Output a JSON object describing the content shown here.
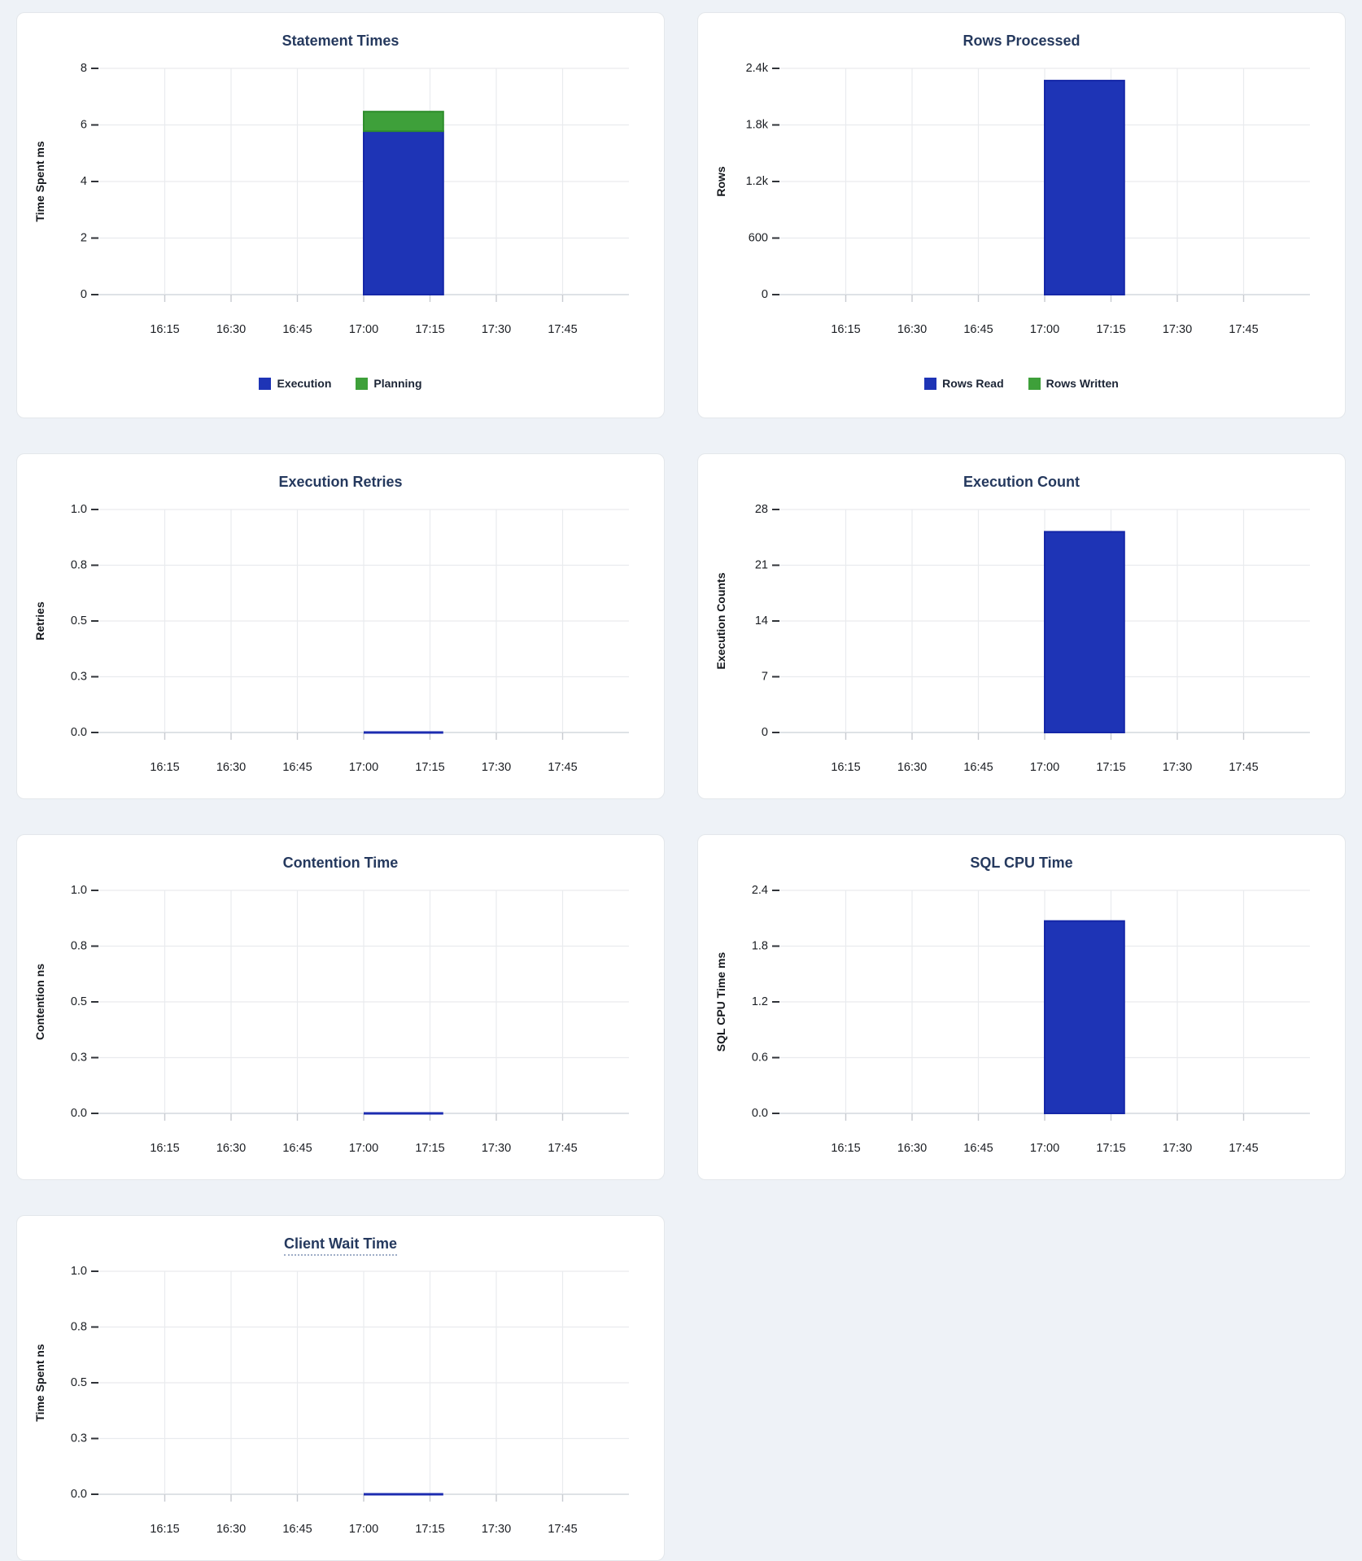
{
  "palette": {
    "page_background": "#eef2f7",
    "card_background": "#ffffff",
    "card_border": "#e3e7eb",
    "title_text": "#25395e",
    "axis_text": "#1b1e23",
    "grid_line": "#e9ebee",
    "zero_line": "#d4d8dd",
    "tick_dash": "#303338",
    "x_tick_stub": "#c7cbd0",
    "bar_blue": "#1e34b6",
    "bar_blue_border": "#1527a8",
    "bar_green": "#3ea03a",
    "bar_green_border": "#2e8d2c",
    "flat_line_blue": "#1c2cb0",
    "title_underline_dots": "#9fadc7"
  },
  "x_axis": {
    "range_start": "16:00",
    "range_end": "18:00",
    "ticks": [
      "16:15",
      "16:30",
      "16:45",
      "17:00",
      "17:15",
      "17:30",
      "17:45"
    ],
    "data_window_start": "17:00",
    "data_window_end": "17:18"
  },
  "chart_data": [
    {
      "type": "bar",
      "stacked": true,
      "title": "Statement Times",
      "ylabel": "Time Spent ms",
      "ymax": 8,
      "yticks": [
        {
          "label": "0",
          "value": 0
        },
        {
          "label": "2",
          "value": 2
        },
        {
          "label": "4",
          "value": 4
        },
        {
          "label": "6",
          "value": 6
        },
        {
          "label": "8",
          "value": 8
        }
      ],
      "series": [
        {
          "name": "Execution",
          "color": "bar_blue",
          "border": "bar_blue_border",
          "value": 5.78
        },
        {
          "name": "Planning",
          "color": "bar_green",
          "border": "bar_green_border",
          "value": 0.69
        }
      ],
      "legend": [
        {
          "label": "Execution",
          "color": "bar_blue"
        },
        {
          "label": "Planning",
          "color": "bar_green"
        }
      ]
    },
    {
      "type": "bar",
      "stacked": true,
      "title": "Rows Processed",
      "ylabel": "Rows",
      "ymax": 2400,
      "yticks": [
        {
          "label": "0",
          "value": 0
        },
        {
          "label": "600",
          "value": 600
        },
        {
          "label": "1.2k",
          "value": 1200
        },
        {
          "label": "1.8k",
          "value": 1800
        },
        {
          "label": "2.4k",
          "value": 2400
        }
      ],
      "series": [
        {
          "name": "Rows Read",
          "color": "bar_blue",
          "border": "bar_blue_border",
          "value": 2270
        },
        {
          "name": "Rows Written",
          "color": "bar_green",
          "border": "bar_green_border",
          "value": 0
        }
      ],
      "legend": [
        {
          "label": "Rows Read",
          "color": "bar_blue"
        },
        {
          "label": "Rows Written",
          "color": "bar_green"
        }
      ]
    },
    {
      "type": "line",
      "title": "Execution Retries",
      "ylabel": "Retries",
      "ymax": 1,
      "yticks": [
        {
          "label": "0.0",
          "value": 0
        },
        {
          "label": "0.3",
          "value": 0.25
        },
        {
          "label": "0.5",
          "value": 0.5
        },
        {
          "label": "0.8",
          "value": 0.75
        },
        {
          "label": "1.0",
          "value": 1
        }
      ],
      "line_value": 0
    },
    {
      "type": "bar",
      "stacked": false,
      "title": "Execution Count",
      "ylabel": "Execution Counts",
      "ymax": 28,
      "yticks": [
        {
          "label": "0",
          "value": 0
        },
        {
          "label": "7",
          "value": 7
        },
        {
          "label": "14",
          "value": 14
        },
        {
          "label": "21",
          "value": 21
        },
        {
          "label": "28",
          "value": 28
        }
      ],
      "series": [
        {
          "name": "",
          "color": "bar_blue",
          "border": "bar_blue_border",
          "value": 25.2
        }
      ]
    },
    {
      "type": "line",
      "title": "Contention Time",
      "ylabel": "Contention ns",
      "ymax": 1,
      "yticks": [
        {
          "label": "0.0",
          "value": 0
        },
        {
          "label": "0.3",
          "value": 0.25
        },
        {
          "label": "0.5",
          "value": 0.5
        },
        {
          "label": "0.8",
          "value": 0.75
        },
        {
          "label": "1.0",
          "value": 1
        }
      ],
      "line_value": 0
    },
    {
      "type": "bar",
      "stacked": false,
      "title": "SQL CPU Time",
      "ylabel": "SQL CPU Time ms",
      "ymax": 2.4,
      "yticks": [
        {
          "label": "0.0",
          "value": 0
        },
        {
          "label": "0.6",
          "value": 0.6
        },
        {
          "label": "1.2",
          "value": 1.2
        },
        {
          "label": "1.8",
          "value": 1.8
        },
        {
          "label": "2.4",
          "value": 2.4
        }
      ],
      "series": [
        {
          "name": "",
          "color": "bar_blue",
          "border": "bar_blue_border",
          "value": 2.07
        }
      ]
    },
    {
      "type": "line",
      "title": "Client Wait Time",
      "title_tooltip_underline": true,
      "ylabel": "Time Spent ns",
      "ymax": 1,
      "yticks": [
        {
          "label": "0.0",
          "value": 0
        },
        {
          "label": "0.3",
          "value": 0.25
        },
        {
          "label": "0.5",
          "value": 0.5
        },
        {
          "label": "0.8",
          "value": 0.75
        },
        {
          "label": "1.0",
          "value": 1
        }
      ],
      "line_value": 0
    }
  ]
}
